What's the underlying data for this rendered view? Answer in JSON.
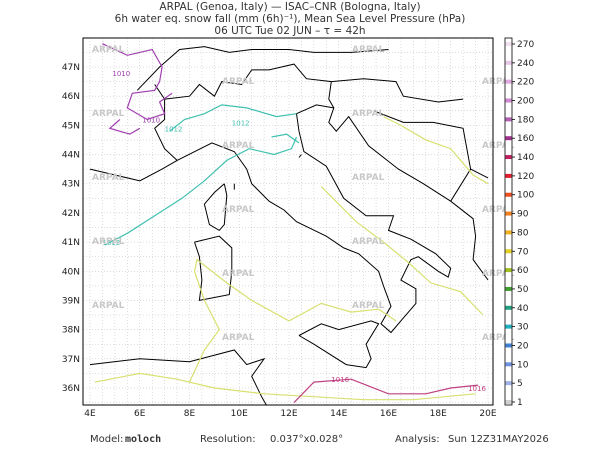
{
  "header": {
    "lines": [
      "ARPAL (Genoa, Italy)  —  ISAC–CNR (Bologna, Italy)",
      "6h water eq. snow fall (mm (6h)⁻¹), Mean Sea Level Pressure (hPa)",
      "06 UTC Tue 02 JUN  –  τ = 42h"
    ]
  },
  "map": {
    "lon_labels": [
      "4E",
      "6E",
      "8E",
      "10E",
      "12E",
      "14E",
      "16E",
      "18E",
      "20E"
    ],
    "lat_labels": [
      "47N",
      "46N",
      "45N",
      "44N",
      "43N",
      "42N",
      "41N",
      "40N",
      "39N",
      "38N",
      "37N",
      "36N"
    ],
    "watermark": "ARPAL",
    "contour_labels": [
      "1010",
      "1010",
      "1012",
      "1012",
      "1012",
      "1016",
      "1016"
    ]
  },
  "colorbar": {
    "levels": [
      {
        "label": "270",
        "color": "#f0e0f0"
      },
      {
        "label": "240",
        "color": "#e8c8e8"
      },
      {
        "label": "220",
        "color": "#e0a8e0"
      },
      {
        "label": "200",
        "color": "#d088d0"
      },
      {
        "label": "180",
        "color": "#b060b0"
      },
      {
        "label": "160",
        "color": "#a03090"
      },
      {
        "label": "140",
        "color": "#c02060"
      },
      {
        "label": "120",
        "color": "#e02030"
      },
      {
        "label": "100",
        "color": "#f05020"
      },
      {
        "label": "90",
        "color": "#f08020"
      },
      {
        "label": "80",
        "color": "#f0b020"
      },
      {
        "label": "70",
        "color": "#e0d020"
      },
      {
        "label": "60",
        "color": "#a0c020"
      },
      {
        "label": "50",
        "color": "#40a030"
      },
      {
        "label": "40",
        "color": "#20a080"
      },
      {
        "label": "30",
        "color": "#20b0c0"
      },
      {
        "label": "20",
        "color": "#4080d0"
      },
      {
        "label": "10",
        "color": "#7090e0"
      },
      {
        "label": "5",
        "color": "#a0b0e8"
      },
      {
        "label": "1",
        "color": "#d0d0d0"
      }
    ]
  },
  "footer": {
    "model_label": "Model:",
    "model": "moloch",
    "resolution_label": "Resolution:",
    "resolution": "0.037°x0.028°",
    "analysis_label": "Analysis:",
    "analysis": "Sun 12Z31MAY2026"
  }
}
